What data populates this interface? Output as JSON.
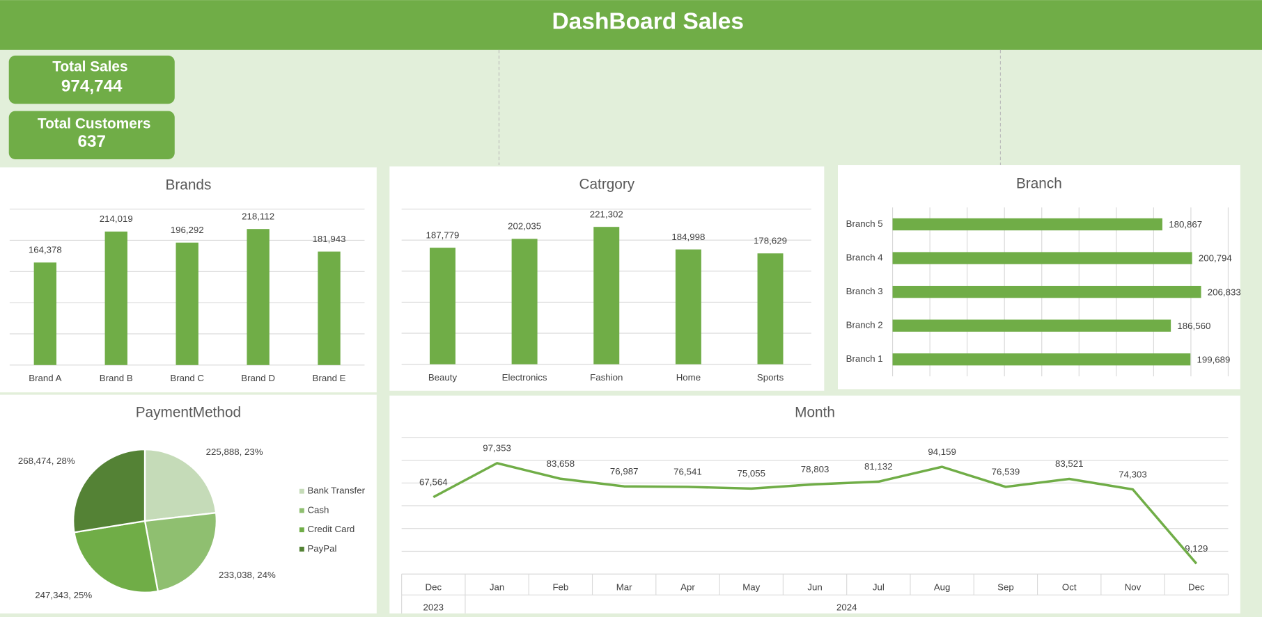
{
  "header": {
    "title": "DashBoard Sales"
  },
  "kpis": [
    {
      "label": "Total Sales",
      "value": "974,744"
    },
    {
      "label": "Total Customers",
      "value": "637"
    }
  ],
  "chart_data": [
    {
      "type": "bar",
      "title": "Brands",
      "categories": [
        "Brand A",
        "Brand B",
        "Brand C",
        "Brand D",
        "Brand E"
      ],
      "values": [
        164378,
        214019,
        196292,
        218112,
        181943
      ],
      "value_labels": [
        "164,378",
        "214,019",
        "196,292",
        "218,112",
        "181,943"
      ],
      "color": "#70ad47",
      "ylim": [
        0,
        250000
      ],
      "yticks": [
        0,
        50000,
        100000,
        150000,
        200000,
        250000
      ],
      "grid": true
    },
    {
      "type": "bar",
      "title": "Catrgory",
      "categories": [
        "Beauty",
        "Electronics",
        "Fashion",
        "Home",
        "Sports"
      ],
      "values": [
        187779,
        202035,
        221302,
        184998,
        178629
      ],
      "value_labels": [
        "187,779",
        "202,035",
        "221,302",
        "184,998",
        "178,629"
      ],
      "color": "#70ad47",
      "ylim": [
        0,
        250000
      ],
      "yticks": [
        0,
        50000,
        100000,
        150000,
        200000,
        250000
      ],
      "grid": true
    },
    {
      "type": "barh",
      "title": "Branch",
      "categories": [
        "Branch 1",
        "Branch 2",
        "Branch 3",
        "Branch 4",
        "Branch 5"
      ],
      "values": [
        199689,
        186560,
        206833,
        200794,
        180867
      ],
      "value_labels": [
        "199,689",
        "186,560",
        "206,833",
        "200,794",
        "180,867"
      ],
      "color": "#70ad47",
      "xlim": [
        0,
        225000
      ],
      "xticks": [
        0,
        25000,
        50000,
        75000,
        100000,
        125000,
        150000,
        175000,
        200000,
        225000
      ],
      "grid": true
    },
    {
      "type": "pie",
      "title": "PaymentMethod",
      "categories": [
        "Bank Transfer",
        "Cash",
        "Credit Card",
        "PayPal"
      ],
      "values": [
        225888,
        233038,
        247343,
        268474
      ],
      "value_labels": [
        "225,888, 23%",
        "233,038, 24%",
        "247,343, 25%",
        "268,474, 28%"
      ],
      "colors": [
        "#c5dbb8",
        "#8fbf70",
        "#70ad47",
        "#548235"
      ],
      "legend": "right"
    },
    {
      "type": "line",
      "title": "Month",
      "categories": [
        "Dec",
        "Jan",
        "Feb",
        "Mar",
        "Apr",
        "May",
        "Jun",
        "Jul",
        "Aug",
        "Sep",
        "Oct",
        "Nov",
        "Dec"
      ],
      "groups": [
        {
          "name": "2023",
          "count": 1
        },
        {
          "name": "2024",
          "count": 12
        }
      ],
      "values": [
        67564,
        97353,
        83658,
        76987,
        76541,
        75055,
        78803,
        81132,
        94159,
        76539,
        83521,
        74303,
        9129
      ],
      "value_labels": [
        "67,564",
        "97,353",
        "83,658",
        "76,987",
        "76,541",
        "75,055",
        "78,803",
        "81,132",
        "94,159",
        "76,539",
        "83,521",
        "74,303",
        "9,129"
      ],
      "color": "#70ad47",
      "ylim": [
        0,
        120000
      ],
      "yticks": [
        0,
        20000,
        40000,
        60000,
        80000,
        100000,
        120000
      ],
      "grid": true
    }
  ]
}
